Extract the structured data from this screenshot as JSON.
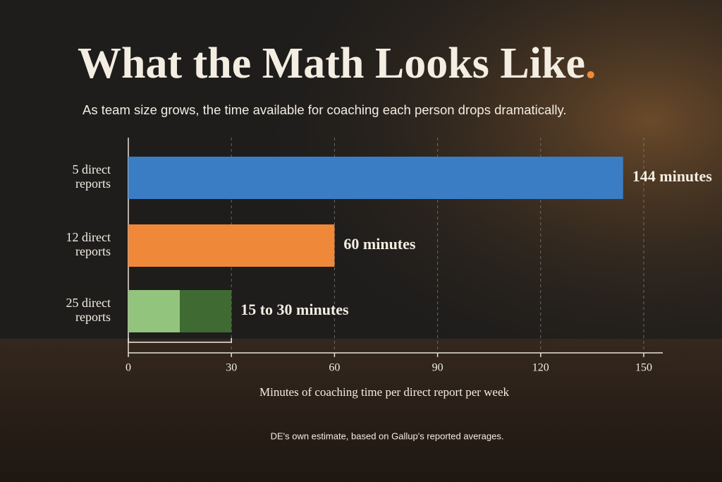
{
  "chart_data": {
    "type": "range-bar",
    "title": "What the Math Looks Like",
    "title_mark": ".",
    "subtitle": "As team size grows, the time available for coaching each person drops dramatically.",
    "categories": [
      "5 direct reports",
      "12 direct reports",
      "25 direct reports"
    ],
    "bars": [
      {
        "value": 144,
        "label": "144 minutes",
        "color": "#3a7dc4"
      },
      {
        "value": 60,
        "label": "60 minutes",
        "color": "#f0883a"
      },
      {
        "low": 15,
        "high": 30,
        "label": "15 to 30 minutes",
        "colors": [
          "#93c47d",
          "#3f6b32"
        ]
      }
    ],
    "xlim": [
      0,
      150
    ],
    "xticks": [
      0,
      30,
      60,
      90,
      120,
      150
    ],
    "grid": true,
    "x_label": "Minutes of coaching time per direct report per week",
    "footnote": "DE's own estimate, based on Gallup's reported averages."
  }
}
